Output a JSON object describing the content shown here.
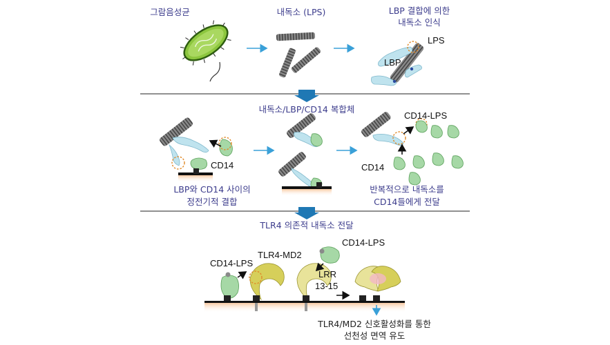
{
  "row1": {
    "step1": "그람음성균",
    "step2": "내독소 (LPS)",
    "step3_line1": "LBP 결합에 의한",
    "step3_line2": "내독소 인식",
    "label_lps": "LPS",
    "label_lbp": "LBP"
  },
  "row2": {
    "title": "내독소/LBP/CD14 복합체",
    "label_cd14_left": "CD14",
    "label_cd14_lps": "CD14-LPS",
    "label_cd14_right": "CD14",
    "caption_left_line1": "LBP와 CD14 사이의",
    "caption_left_line2": "정전기적 결합",
    "caption_right_line1": "반복적으로 내독소를",
    "caption_right_line2": "CD14들에게 전달"
  },
  "row3": {
    "title": "TLR4 의존적 내독소 전달",
    "label_cd14_lps_left": "CD14-LPS",
    "label_tlr4_md2": "TLR4-MD2",
    "label_cd14_lps_top": "CD14-LPS",
    "label_lrr_line1": "LRR",
    "label_lrr_line2": "13-15",
    "caption_line1": "TLR4/MD2 신호활성화를 통한",
    "caption_line2": "선천성 면역 유도"
  },
  "colors": {
    "title_text": "#3c3c8c",
    "flow_arrow": "#3aa0d8",
    "transition_arrow": "#1f78b4",
    "lbp": "#bfe3ee",
    "cd14": "#a6d8a6",
    "tlr4": "#d6cf5a",
    "lps": "#7a7a7a",
    "membrane": "#f4c9a6"
  }
}
